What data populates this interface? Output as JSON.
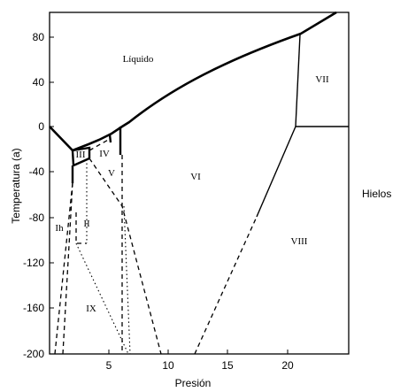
{
  "chart_data": {
    "type": "diagram",
    "xlabel": "Presión",
    "ylabel": "Temperatura (a)",
    "side_label": "Hielos",
    "xlim": [
      0,
      25
    ],
    "ylim": [
      -200,
      100
    ],
    "x_ticks": [
      "5",
      "10",
      "15",
      "20"
    ],
    "y_ticks": [
      "80",
      "40",
      "0",
      "-40",
      "-80",
      "-120",
      "-160",
      "-200"
    ],
    "regions": [
      {
        "label": "Líquido",
        "x": 6.0,
        "y": 75
      },
      {
        "label": "VII",
        "x": 22.8,
        "y": 52
      },
      {
        "label": "VI",
        "x": 12.0,
        "y": -57
      },
      {
        "label": "VIII",
        "x": 20.8,
        "y": -130
      },
      {
        "label": "Ih",
        "x": 0.8,
        "y": -112
      },
      {
        "label": "III",
        "x": 2.2,
        "y": -30
      },
      {
        "label": "IV",
        "x": 4.3,
        "y": -32
      },
      {
        "label": "V",
        "x": 4.7,
        "y": -48
      },
      {
        "label": "II",
        "x": 2.9,
        "y": -108
      },
      {
        "label": "IX",
        "x": 3.0,
        "y": -205
      }
    ]
  }
}
